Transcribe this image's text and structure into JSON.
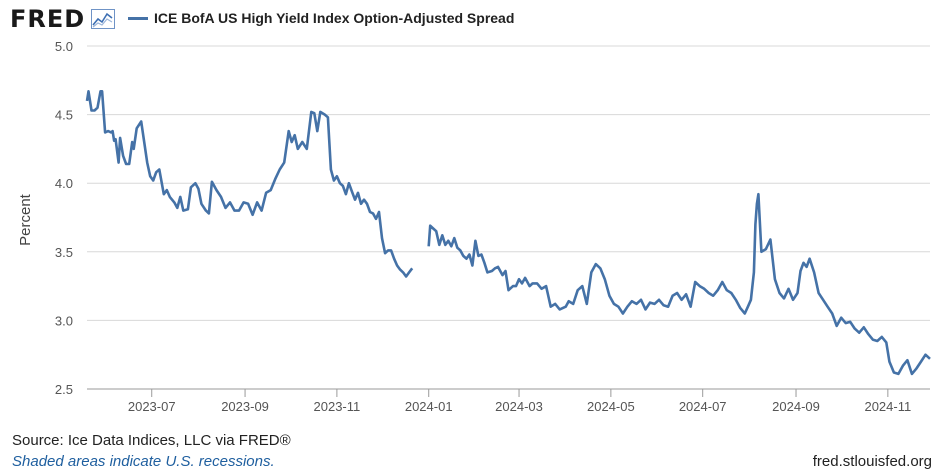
{
  "logo": {
    "text": "FRED"
  },
  "legend": {
    "label": "ICE BofA US High Yield Index Option-Adjusted Spread"
  },
  "footer": {
    "source": "Source: Ice Data Indices, LLC via FRED®",
    "recession_note": "Shaded areas indicate U.S. recessions.",
    "site": "fred.stlouisfed.org"
  },
  "colors": {
    "series": "#4572a7",
    "grid": "#d8d8d8",
    "link": "#1f5f9f"
  },
  "chart_data": {
    "type": "line",
    "title": "",
    "xlabel": "",
    "ylabel": "Percent",
    "xlim": [
      "2023-05-19",
      "2024-11-29"
    ],
    "ylim": [
      2.5,
      5.0
    ],
    "y_ticks": [
      "2.5",
      "3.0",
      "3.5",
      "4.0",
      "4.5",
      "5.0"
    ],
    "x_ticks": [
      {
        "date": "2023-07-01",
        "label": "2023-07"
      },
      {
        "date": "2023-09-01",
        "label": "2023-09"
      },
      {
        "date": "2023-11-01",
        "label": "2023-11"
      },
      {
        "date": "2024-01-01",
        "label": "2024-01"
      },
      {
        "date": "2024-03-01",
        "label": "2024-03"
      },
      {
        "date": "2024-05-01",
        "label": "2024-05"
      },
      {
        "date": "2024-07-01",
        "label": "2024-07"
      },
      {
        "date": "2024-09-01",
        "label": "2024-09"
      },
      {
        "date": "2024-11-01",
        "label": "2024-11"
      }
    ],
    "grid": "horizontal",
    "legend_position": "top-left",
    "series": [
      {
        "name": "ICE BofA US High Yield Index Option-Adjusted Spread",
        "segments": [
          [
            [
              "2023-05-19",
              4.6
            ],
            [
              "2023-05-20",
              4.67
            ],
            [
              "2023-05-22",
              4.53
            ],
            [
              "2023-05-24",
              4.53
            ],
            [
              "2023-05-26",
              4.55
            ],
            [
              "2023-05-28",
              4.67
            ],
            [
              "2023-05-29",
              4.67
            ],
            [
              "2023-05-31",
              4.37
            ],
            [
              "2023-06-02",
              4.38
            ],
            [
              "2023-06-04",
              4.37
            ],
            [
              "2023-06-05",
              4.38
            ],
            [
              "2023-06-06",
              4.31
            ],
            [
              "2023-06-07",
              4.32
            ],
            [
              "2023-06-09",
              4.15
            ],
            [
              "2023-06-10",
              4.33
            ],
            [
              "2023-06-12",
              4.2
            ],
            [
              "2023-06-14",
              4.14
            ],
            [
              "2023-06-16",
              4.14
            ],
            [
              "2023-06-18",
              4.3
            ],
            [
              "2023-06-19",
              4.25
            ],
            [
              "2023-06-21",
              4.4
            ],
            [
              "2023-06-24",
              4.45
            ],
            [
              "2023-06-26",
              4.3
            ],
            [
              "2023-06-28",
              4.15
            ],
            [
              "2023-06-30",
              4.05
            ],
            [
              "2023-07-02",
              4.02
            ],
            [
              "2023-07-04",
              4.08
            ],
            [
              "2023-07-06",
              4.1
            ],
            [
              "2023-07-09",
              3.92
            ],
            [
              "2023-07-11",
              3.95
            ],
            [
              "2023-07-13",
              3.9
            ],
            [
              "2023-07-16",
              3.86
            ],
            [
              "2023-07-18",
              3.82
            ],
            [
              "2023-07-20",
              3.9
            ],
            [
              "2023-07-22",
              3.8
            ],
            [
              "2023-07-25",
              3.81
            ],
            [
              "2023-07-27",
              3.97
            ],
            [
              "2023-07-30",
              4.0
            ],
            [
              "2023-08-01",
              3.96
            ],
            [
              "2023-08-03",
              3.85
            ],
            [
              "2023-08-06",
              3.8
            ],
            [
              "2023-08-08",
              3.78
            ],
            [
              "2023-08-10",
              4.01
            ],
            [
              "2023-08-13",
              3.95
            ],
            [
              "2023-08-16",
              3.9
            ],
            [
              "2023-08-19",
              3.82
            ],
            [
              "2023-08-22",
              3.86
            ],
            [
              "2023-08-25",
              3.8
            ],
            [
              "2023-08-28",
              3.8
            ],
            [
              "2023-08-31",
              3.86
            ],
            [
              "2023-09-03",
              3.85
            ],
            [
              "2023-09-06",
              3.77
            ],
            [
              "2023-09-09",
              3.86
            ],
            [
              "2023-09-12",
              3.8
            ],
            [
              "2023-09-15",
              3.93
            ],
            [
              "2023-09-18",
              3.95
            ],
            [
              "2023-09-21",
              4.03
            ],
            [
              "2023-09-24",
              4.1
            ],
            [
              "2023-09-27",
              4.15
            ],
            [
              "2023-09-30",
              4.38
            ],
            [
              "2023-10-02",
              4.3
            ],
            [
              "2023-10-04",
              4.35
            ],
            [
              "2023-10-06",
              4.25
            ],
            [
              "2023-10-09",
              4.3
            ],
            [
              "2023-10-12",
              4.25
            ],
            [
              "2023-10-15",
              4.52
            ],
            [
              "2023-10-17",
              4.51
            ],
            [
              "2023-10-19",
              4.38
            ],
            [
              "2023-10-21",
              4.52
            ],
            [
              "2023-10-24",
              4.5
            ],
            [
              "2023-10-26",
              4.48
            ],
            [
              "2023-10-28",
              4.1
            ],
            [
              "2023-10-30",
              4.02
            ],
            [
              "2023-11-01",
              4.05
            ],
            [
              "2023-11-03",
              4.0
            ],
            [
              "2023-11-05",
              3.98
            ],
            [
              "2023-11-07",
              3.92
            ],
            [
              "2023-11-09",
              4.0
            ],
            [
              "2023-11-11",
              3.94
            ],
            [
              "2023-11-13",
              3.88
            ],
            [
              "2023-11-15",
              3.93
            ],
            [
              "2023-11-17",
              3.85
            ],
            [
              "2023-11-19",
              3.88
            ],
            [
              "2023-11-21",
              3.85
            ],
            [
              "2023-11-23",
              3.79
            ],
            [
              "2023-11-25",
              3.78
            ],
            [
              "2023-11-27",
              3.74
            ],
            [
              "2023-11-29",
              3.79
            ],
            [
              "2023-12-01",
              3.6
            ],
            [
              "2023-12-03",
              3.49
            ],
            [
              "2023-12-05",
              3.51
            ],
            [
              "2023-12-07",
              3.51
            ],
            [
              "2023-12-09",
              3.45
            ],
            [
              "2023-12-11",
              3.4
            ],
            [
              "2023-12-13",
              3.37
            ],
            [
              "2023-12-15",
              3.35
            ],
            [
              "2023-12-17",
              3.32
            ],
            [
              "2023-12-19",
              3.35
            ],
            [
              "2023-12-21",
              3.38
            ]
          ],
          [
            [
              "2024-01-01",
              3.54
            ],
            [
              "2024-01-02",
              3.69
            ],
            [
              "2024-01-04",
              3.67
            ],
            [
              "2024-01-06",
              3.65
            ],
            [
              "2024-01-08",
              3.55
            ],
            [
              "2024-01-10",
              3.62
            ],
            [
              "2024-01-12",
              3.55
            ],
            [
              "2024-01-14",
              3.58
            ],
            [
              "2024-01-16",
              3.54
            ],
            [
              "2024-01-18",
              3.6
            ],
            [
              "2024-01-20",
              3.53
            ],
            [
              "2024-01-22",
              3.51
            ],
            [
              "2024-01-24",
              3.47
            ],
            [
              "2024-01-26",
              3.45
            ],
            [
              "2024-01-28",
              3.48
            ],
            [
              "2024-01-30",
              3.4
            ],
            [
              "2024-02-01",
              3.58
            ],
            [
              "2024-02-03",
              3.47
            ],
            [
              "2024-02-05",
              3.48
            ],
            [
              "2024-02-07",
              3.42
            ],
            [
              "2024-02-09",
              3.35
            ],
            [
              "2024-02-12",
              3.36
            ],
            [
              "2024-02-14",
              3.38
            ],
            [
              "2024-02-16",
              3.39
            ],
            [
              "2024-02-19",
              3.33
            ],
            [
              "2024-02-21",
              3.36
            ],
            [
              "2024-02-23",
              3.22
            ],
            [
              "2024-02-26",
              3.25
            ],
            [
              "2024-02-28",
              3.25
            ],
            [
              "2024-03-01",
              3.3
            ],
            [
              "2024-03-03",
              3.27
            ],
            [
              "2024-03-05",
              3.31
            ],
            [
              "2024-03-08",
              3.25
            ],
            [
              "2024-03-10",
              3.27
            ],
            [
              "2024-03-13",
              3.27
            ],
            [
              "2024-03-16",
              3.23
            ],
            [
              "2024-03-19",
              3.25
            ],
            [
              "2024-03-22",
              3.1
            ],
            [
              "2024-03-25",
              3.12
            ],
            [
              "2024-03-28",
              3.08
            ],
            [
              "2024-04-01",
              3.1
            ],
            [
              "2024-04-03",
              3.14
            ],
            [
              "2024-04-06",
              3.12
            ],
            [
              "2024-04-09",
              3.22
            ],
            [
              "2024-04-12",
              3.25
            ],
            [
              "2024-04-15",
              3.12
            ],
            [
              "2024-04-18",
              3.35
            ],
            [
              "2024-04-21",
              3.41
            ],
            [
              "2024-04-24",
              3.38
            ],
            [
              "2024-04-27",
              3.3
            ],
            [
              "2024-04-30",
              3.18
            ],
            [
              "2024-05-03",
              3.12
            ],
            [
              "2024-05-06",
              3.1
            ],
            [
              "2024-05-09",
              3.05
            ],
            [
              "2024-05-12",
              3.1
            ],
            [
              "2024-05-15",
              3.14
            ],
            [
              "2024-05-18",
              3.12
            ],
            [
              "2024-05-21",
              3.15
            ],
            [
              "2024-05-24",
              3.08
            ],
            [
              "2024-05-27",
              3.13
            ],
            [
              "2024-05-30",
              3.12
            ],
            [
              "2024-06-02",
              3.15
            ],
            [
              "2024-06-05",
              3.11
            ],
            [
              "2024-06-08",
              3.1
            ],
            [
              "2024-06-11",
              3.18
            ],
            [
              "2024-06-14",
              3.2
            ],
            [
              "2024-06-17",
              3.15
            ],
            [
              "2024-06-20",
              3.19
            ],
            [
              "2024-06-23",
              3.1
            ],
            [
              "2024-06-26",
              3.28
            ],
            [
              "2024-06-29",
              3.25
            ],
            [
              "2024-07-02",
              3.23
            ],
            [
              "2024-07-05",
              3.2
            ],
            [
              "2024-07-08",
              3.18
            ],
            [
              "2024-07-11",
              3.22
            ],
            [
              "2024-07-14",
              3.28
            ],
            [
              "2024-07-17",
              3.22
            ],
            [
              "2024-07-20",
              3.2
            ],
            [
              "2024-07-23",
              3.15
            ],
            [
              "2024-07-26",
              3.09
            ],
            [
              "2024-07-29",
              3.05
            ],
            [
              "2024-07-31",
              3.1
            ],
            [
              "2024-08-02",
              3.15
            ],
            [
              "2024-08-04",
              3.35
            ],
            [
              "2024-08-05",
              3.7
            ],
            [
              "2024-08-06",
              3.85
            ],
            [
              "2024-08-07",
              3.92
            ],
            [
              "2024-08-09",
              3.5
            ],
            [
              "2024-08-12",
              3.52
            ],
            [
              "2024-08-15",
              3.59
            ],
            [
              "2024-08-18",
              3.3
            ],
            [
              "2024-08-21",
              3.2
            ],
            [
              "2024-08-24",
              3.16
            ],
            [
              "2024-08-27",
              3.23
            ],
            [
              "2024-08-30",
              3.15
            ],
            [
              "2024-09-02",
              3.2
            ],
            [
              "2024-09-04",
              3.36
            ],
            [
              "2024-09-06",
              3.42
            ],
            [
              "2024-09-08",
              3.39
            ],
            [
              "2024-09-10",
              3.45
            ],
            [
              "2024-09-13",
              3.35
            ],
            [
              "2024-09-16",
              3.2
            ],
            [
              "2024-09-19",
              3.15
            ],
            [
              "2024-09-22",
              3.1
            ],
            [
              "2024-09-25",
              3.05
            ],
            [
              "2024-09-28",
              2.96
            ],
            [
              "2024-10-01",
              3.02
            ],
            [
              "2024-10-04",
              2.98
            ],
            [
              "2024-10-07",
              2.99
            ],
            [
              "2024-10-10",
              2.94
            ],
            [
              "2024-10-13",
              2.91
            ],
            [
              "2024-10-16",
              2.95
            ],
            [
              "2024-10-19",
              2.9
            ],
            [
              "2024-10-22",
              2.86
            ],
            [
              "2024-10-25",
              2.85
            ],
            [
              "2024-10-28",
              2.88
            ],
            [
              "2024-10-31",
              2.84
            ],
            [
              "2024-11-02",
              2.7
            ],
            [
              "2024-11-05",
              2.62
            ],
            [
              "2024-11-08",
              2.61
            ],
            [
              "2024-11-11",
              2.67
            ],
            [
              "2024-11-14",
              2.71
            ],
            [
              "2024-11-17",
              2.61
            ],
            [
              "2024-11-20",
              2.65
            ],
            [
              "2024-11-23",
              2.7
            ],
            [
              "2024-11-26",
              2.75
            ],
            [
              "2024-11-29",
              2.72
            ]
          ]
        ]
      }
    ]
  }
}
